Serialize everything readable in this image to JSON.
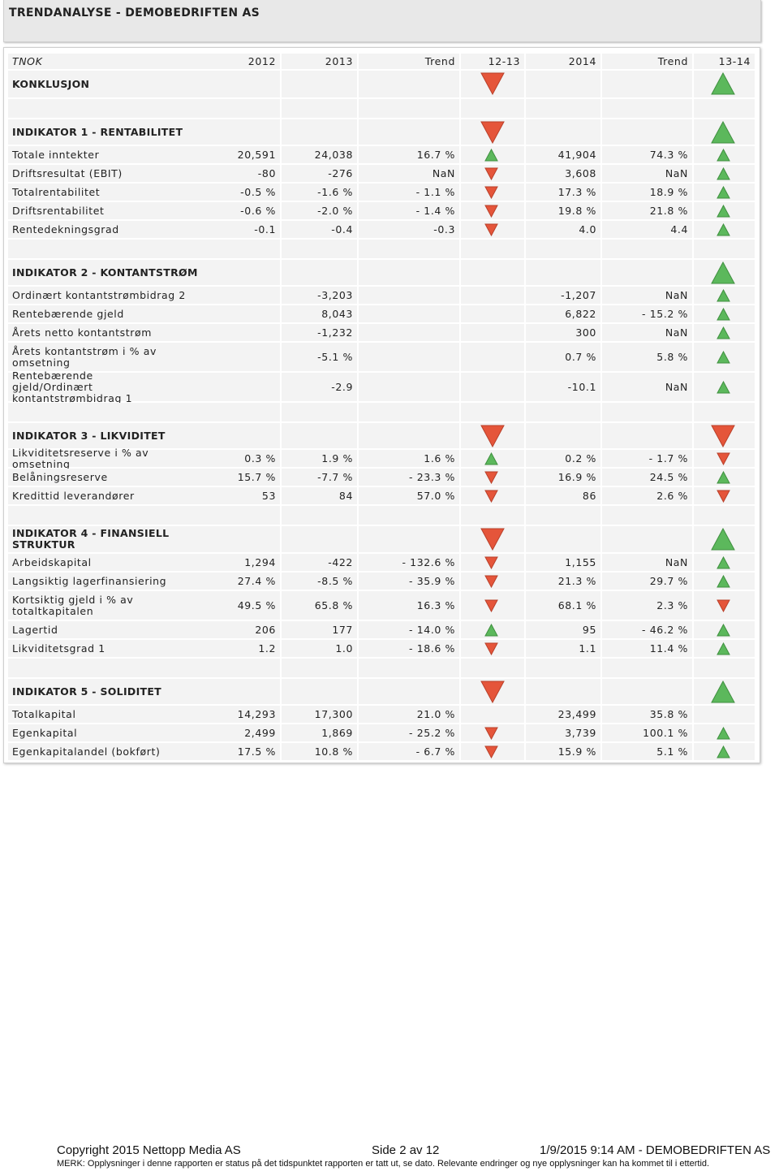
{
  "header": {
    "title": "TRENDANALYSE - DEMOBEDRIFTEN AS"
  },
  "table": {
    "columns": [
      "TNOK",
      "2012",
      "2013",
      "Trend",
      "12-13",
      "2014",
      "Trend",
      "13-14"
    ],
    "conclusion": "KONKLUSJON",
    "sections": [
      {
        "title": "INDIKATOR 1 - RENTABILITET",
        "rows": [
          [
            "Totale inntekter",
            "20,591",
            "24,038",
            "16.7 %",
            "41,904",
            "74.3 %"
          ],
          [
            "Driftsresultat (EBIT)",
            "-80",
            "-276",
            "NaN",
            "3,608",
            "NaN"
          ],
          [
            "Totalrentabilitet",
            "-0.5 %",
            "-1.6 %",
            "- 1.1 %",
            "17.3 %",
            "18.9 %"
          ],
          [
            "Driftsrentabilitet",
            "-0.6 %",
            "-2.0 %",
            "- 1.4 %",
            "19.8 %",
            "21.8 %"
          ],
          [
            "Rentedekningsgrad",
            "-0.1",
            "-0.4",
            "-0.3",
            "4.0",
            "4.4"
          ]
        ]
      },
      {
        "title": "INDIKATOR 2 - KONTANTSTRØM",
        "rows": [
          [
            "Ordinært kontantstrømbidrag 2",
            null,
            "-3,203",
            null,
            "-1,207",
            "NaN"
          ],
          [
            "Rentebærende gjeld",
            null,
            "8,043",
            null,
            "6,822",
            "- 15.2 %"
          ],
          [
            "Årets netto kontantstrøm",
            null,
            "-1,232",
            null,
            "300",
            "NaN"
          ],
          [
            "Årets kontantstrøm i % av omsetning",
            null,
            "-5.1 %",
            null,
            "0.7 %",
            "5.8 %"
          ],
          [
            "Rentebærende gjeld/Ordinært kontantstrømbidrag 1",
            null,
            "-2.9",
            null,
            "-10.1",
            "NaN"
          ]
        ]
      },
      {
        "title": "INDIKATOR 3 - LIKVIDITET",
        "rows": [
          [
            "Likviditetsreserve i % av omsetning",
            "0.3 %",
            "1.9 %",
            "1.6 %",
            "0.2 %",
            "- 1.7 %"
          ],
          [
            "Belåningsreserve",
            "15.7 %",
            "-7.7 %",
            "- 23.3 %",
            "16.9 %",
            "24.5 %"
          ],
          [
            "Kredittid leverandører",
            "53",
            "84",
            "57.0 %",
            "86",
            "2.6 %"
          ]
        ]
      },
      {
        "title": "INDIKATOR 4 - FINANSIELL STRUKTUR",
        "rows": [
          [
            "Arbeidskapital",
            "1,294",
            "-422",
            "- 132.6 %",
            "1,155",
            "NaN"
          ],
          [
            "Langsiktig lagerfinansiering",
            "27.4 %",
            "-8.5 %",
            "- 35.9 %",
            "21.3 %",
            "29.7 %"
          ],
          [
            "Kortsiktig gjeld i % av totaltkapitalen",
            "49.5 %",
            "65.8 %",
            "16.3 %",
            "68.1 %",
            "2.3 %"
          ],
          [
            "Lagertid",
            "206",
            "177",
            "- 14.0 %",
            "95",
            "- 46.2 %"
          ],
          [
            "Likviditetsgrad 1",
            "1.2",
            "1.0",
            "- 18.6 %",
            "1.1",
            "11.4 %"
          ]
        ]
      },
      {
        "title": "INDIKATOR 5 - SOLIDITET",
        "rows": [
          [
            "Totalkapital",
            "14,293",
            "17,300",
            "21.0 %",
            "23,499",
            "35.8 %"
          ],
          [
            "Egenkapital",
            "2,499",
            "1,869",
            "- 25.2 %",
            "3,739",
            "100.1 %"
          ],
          [
            "Egenkapitalandel (bokført)",
            "17.5 %",
            "10.8 %",
            "- 6.7 %",
            "15.9 %",
            "5.1 %"
          ]
        ]
      }
    ]
  },
  "footer": {
    "copyright": "Copyright 2015 Nettopp Media AS",
    "page": "Side 2 av 12",
    "stamp": "1/9/2015 9:14 AM - DEMOBEDRIFTEN AS",
    "note": "MERK: Opplysninger i denne rapporten er status på det tidspunktet rapporten er tatt ut, se dato. Relevante endringer og nye opplysninger kan ha kommet til i ettertid."
  }
}
